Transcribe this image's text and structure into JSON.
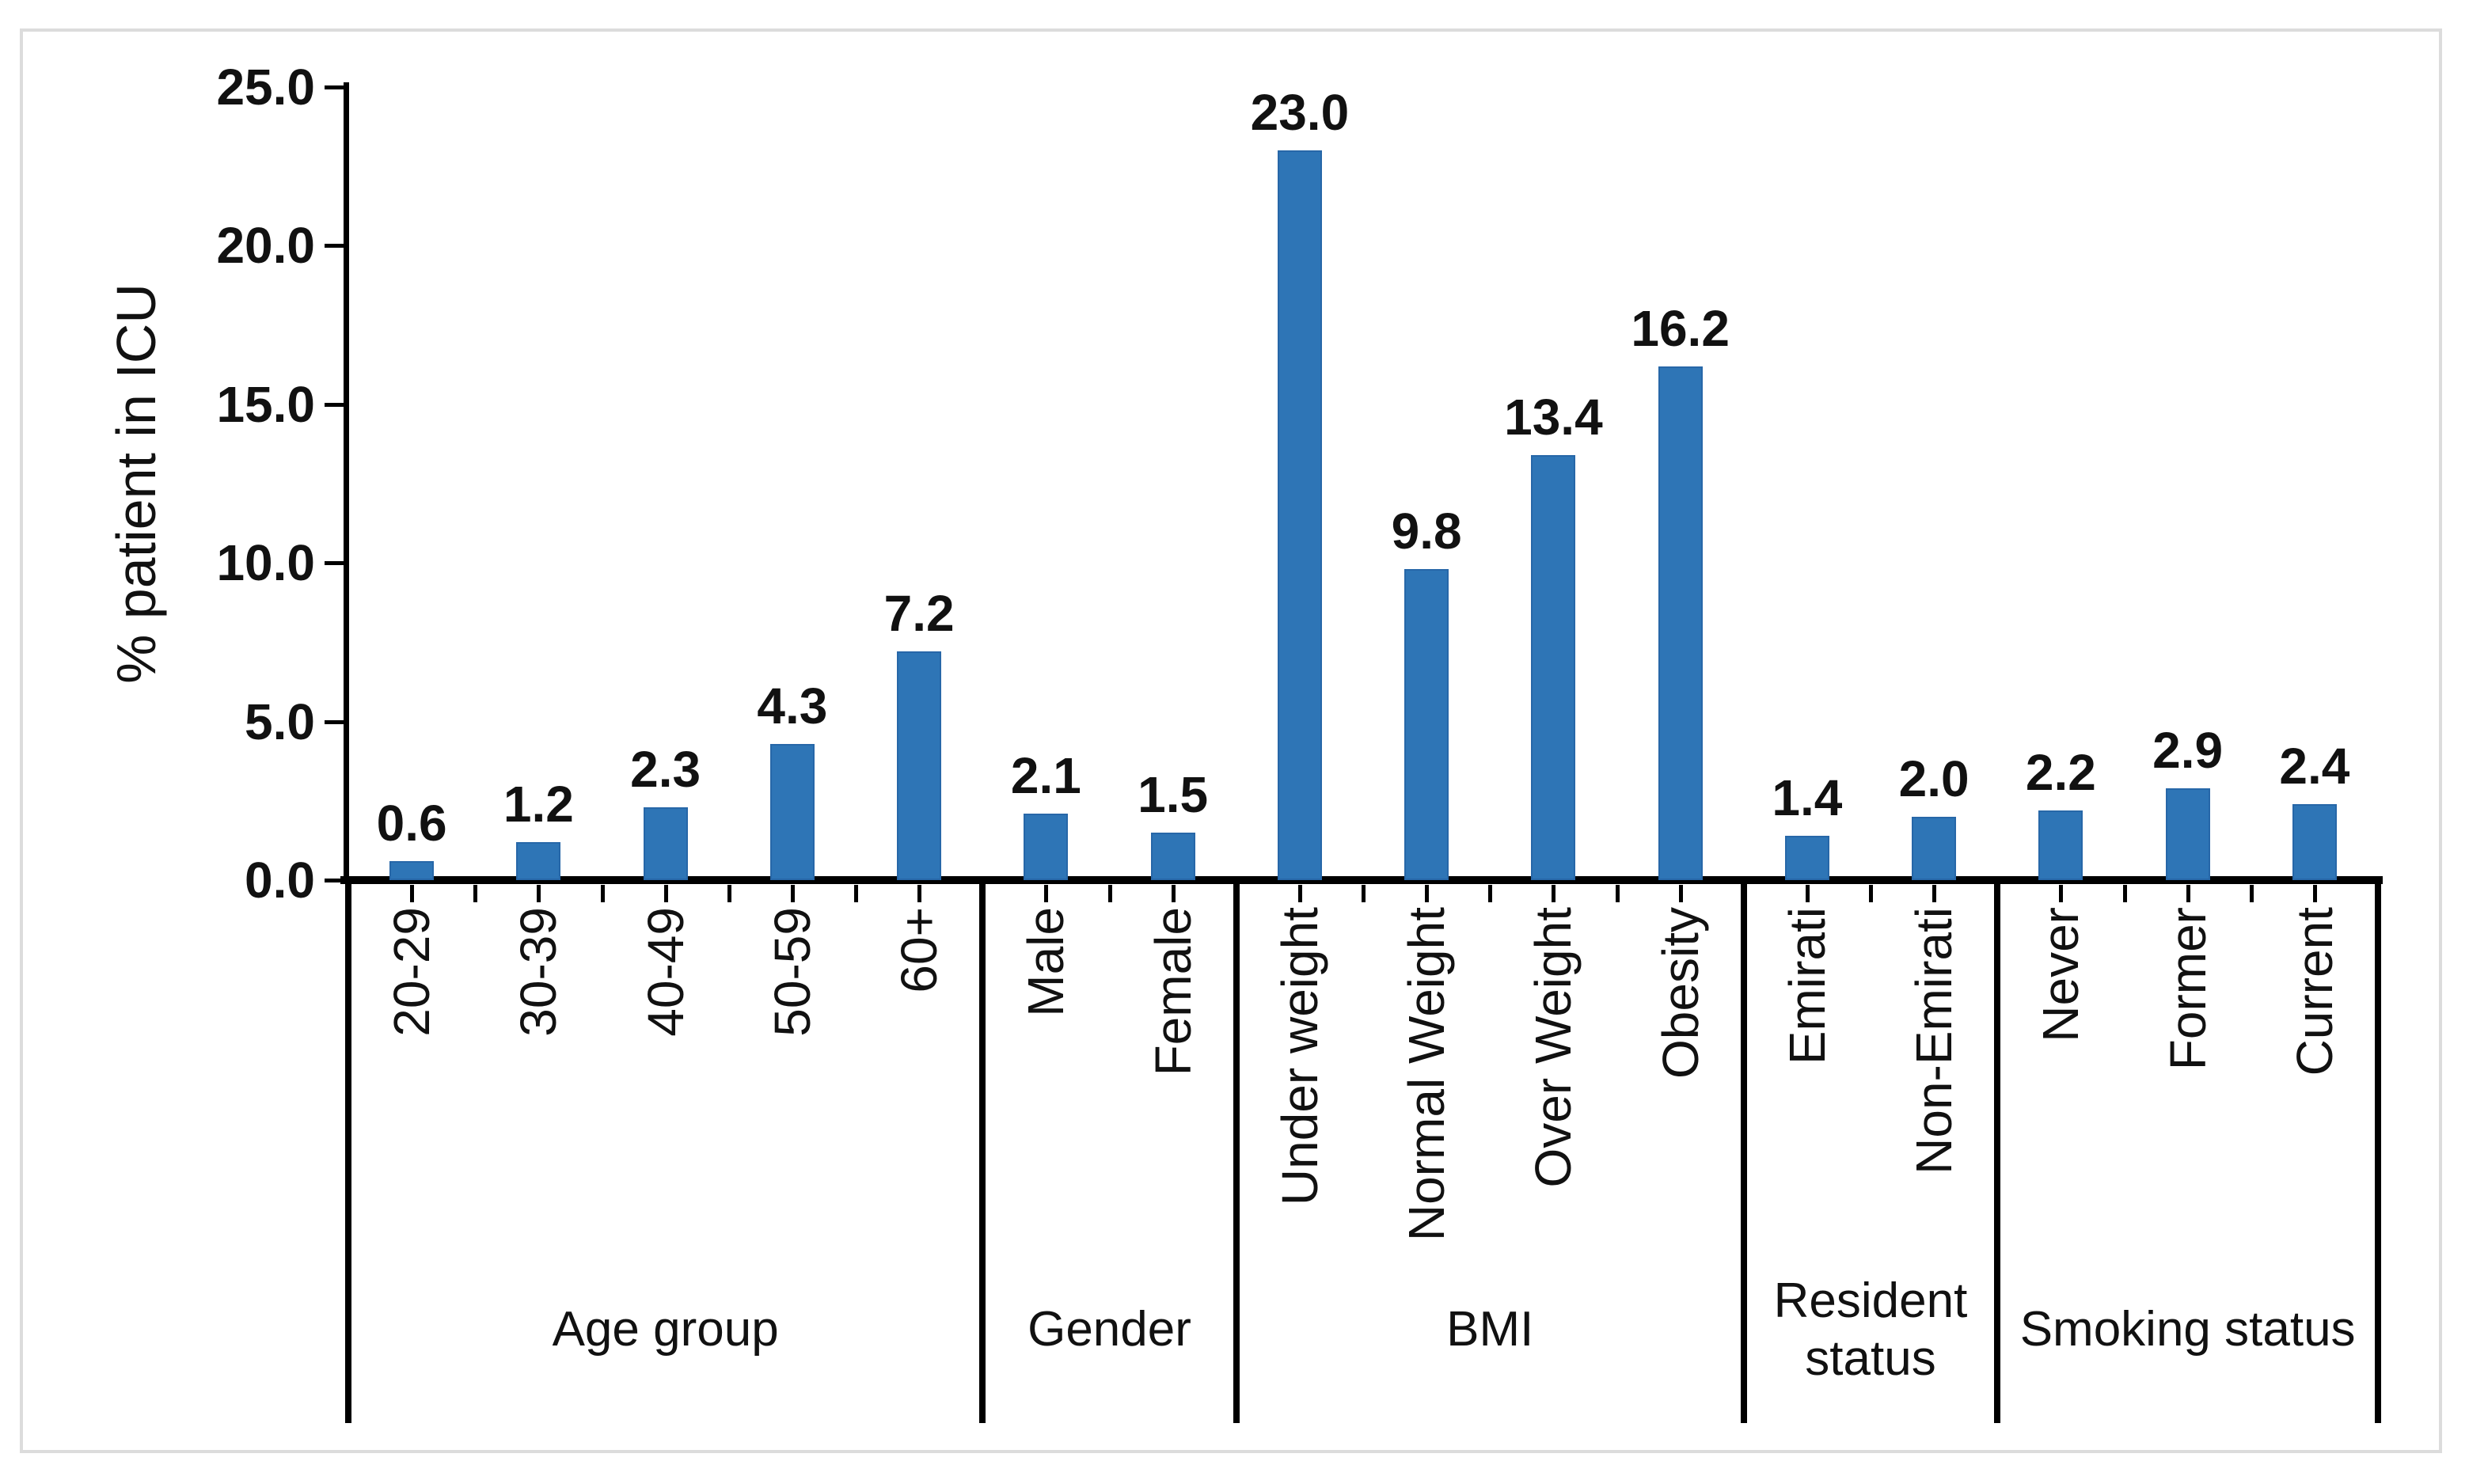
{
  "figure": {
    "background": "#ffffff",
    "border_color": "#dcdcdc",
    "text_color": "#111111",
    "axis_color": "#000000"
  },
  "chart_data": {
    "type": "bar",
    "title": "",
    "xlabel": "",
    "ylabel": "% patient in ICU",
    "ylim": [
      0,
      25
    ],
    "grid": false,
    "legend": false,
    "bar_color": "#2e75b6",
    "y_axis": {
      "ticks": [
        {
          "value": 0,
          "label": "0.0"
        },
        {
          "value": 5,
          "label": "5.0"
        },
        {
          "value": 10,
          "label": "10.0"
        },
        {
          "value": 15,
          "label": "15.0"
        },
        {
          "value": 20,
          "label": "20.0"
        },
        {
          "value": 25,
          "label": "25.0"
        }
      ]
    },
    "groups": [
      {
        "label": "Age group",
        "items": [
          {
            "category": "20-29",
            "value": 0.6,
            "value_label": "0.6"
          },
          {
            "category": "30-39",
            "value": 1.2,
            "value_label": "1.2"
          },
          {
            "category": "40-49",
            "value": 2.3,
            "value_label": "2.3"
          },
          {
            "category": "50-59",
            "value": 4.3,
            "value_label": "4.3"
          },
          {
            "category": "60+",
            "value": 7.2,
            "value_label": "7.2"
          }
        ]
      },
      {
        "label": "Gender",
        "items": [
          {
            "category": "Male",
            "value": 2.1,
            "value_label": "2.1"
          },
          {
            "category": "Female",
            "value": 1.5,
            "value_label": "1.5"
          }
        ]
      },
      {
        "label": "BMI",
        "items": [
          {
            "category": "Under weight",
            "value": 23.0,
            "value_label": "23.0"
          },
          {
            "category": "Normal Weight",
            "value": 9.8,
            "value_label": "9.8"
          },
          {
            "category": "Over Weight",
            "value": 13.4,
            "value_label": "13.4"
          },
          {
            "category": "Obesity",
            "value": 16.2,
            "value_label": "16.2"
          }
        ]
      },
      {
        "label": "Resident status",
        "items": [
          {
            "category": "Emirati",
            "value": 1.4,
            "value_label": "1.4"
          },
          {
            "category": "Non-Emirati",
            "value": 2.0,
            "value_label": "2.0"
          }
        ]
      },
      {
        "label": "Smoking status",
        "items": [
          {
            "category": "Never",
            "value": 2.2,
            "value_label": "2.2"
          },
          {
            "category": "Former",
            "value": 2.9,
            "value_label": "2.9"
          },
          {
            "category": "Current",
            "value": 2.4,
            "value_label": "2.4"
          }
        ]
      }
    ]
  }
}
